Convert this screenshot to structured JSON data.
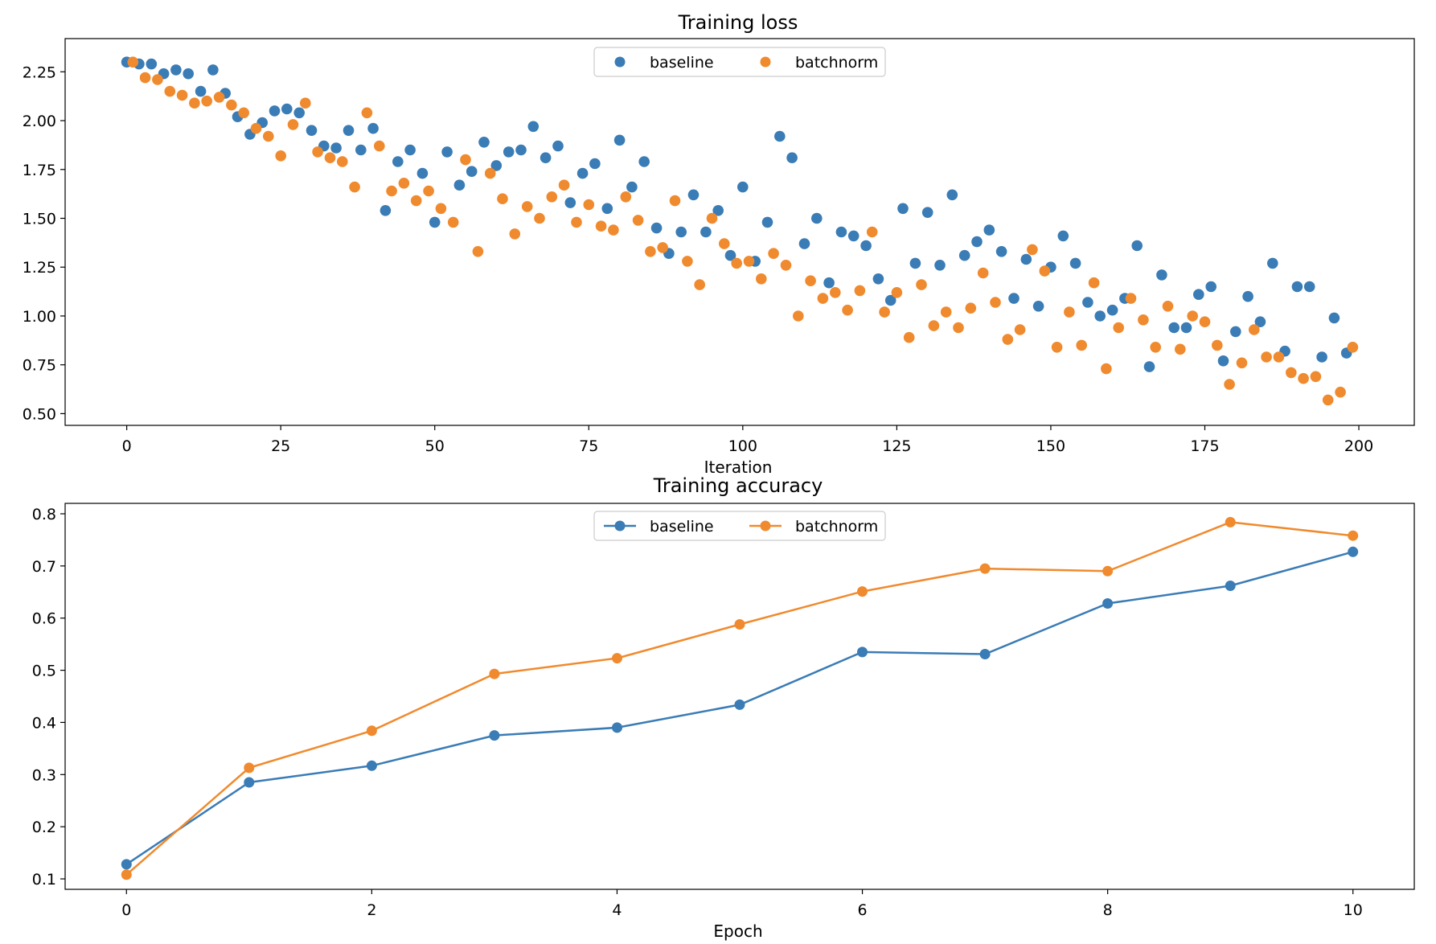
{
  "colors": {
    "baseline": "#3a7cb5",
    "batchnorm": "#f08a2e"
  },
  "chart_data": [
    {
      "type": "scatter",
      "title": "Training loss",
      "xlabel": "Iteration",
      "ylabel": "",
      "xlim": [
        -10,
        209
      ],
      "ylim": [
        0.44,
        2.42
      ],
      "xticks": [
        0,
        25,
        50,
        75,
        100,
        125,
        150,
        175,
        200
      ],
      "yticks": [
        0.5,
        0.75,
        1.0,
        1.25,
        1.5,
        1.75,
        2.0,
        2.25
      ],
      "ytick_labels": [
        "0.50",
        "0.75",
        "1.00",
        "1.25",
        "1.50",
        "1.75",
        "2.00",
        "2.25"
      ],
      "legend": "top-center",
      "grid": false,
      "series": [
        {
          "name": "baseline",
          "x": [
            0,
            2,
            4,
            6,
            8,
            10,
            12,
            14,
            16,
            18,
            20,
            22,
            24,
            26,
            28,
            30,
            32,
            34,
            36,
            38,
            40,
            42,
            44,
            46,
            48,
            50,
            52,
            54,
            56,
            58,
            60,
            62,
            64,
            66,
            68,
            70,
            72,
            74,
            76,
            78,
            80,
            82,
            84,
            86,
            88,
            90,
            92,
            94,
            96,
            98,
            100,
            102,
            104,
            106,
            108,
            110,
            112,
            114,
            116,
            118,
            120,
            122,
            124,
            126,
            128,
            130,
            132,
            134,
            136,
            138,
            140,
            142,
            144,
            146,
            148,
            150,
            152,
            154,
            156,
            158,
            160,
            162,
            164,
            166,
            168,
            170,
            172,
            174,
            176,
            178,
            180,
            182,
            184,
            186,
            188,
            190,
            192,
            194,
            196,
            198
          ],
          "values": [
            2.3,
            2.29,
            2.29,
            2.24,
            2.26,
            2.24,
            2.15,
            2.26,
            2.14,
            2.02,
            1.93,
            1.99,
            2.05,
            2.06,
            2.04,
            1.95,
            1.87,
            1.86,
            1.95,
            1.85,
            1.96,
            1.54,
            1.79,
            1.85,
            1.73,
            1.48,
            1.84,
            1.67,
            1.74,
            1.89,
            1.77,
            1.84,
            1.85,
            1.97,
            1.81,
            1.87,
            1.58,
            1.73,
            1.78,
            1.55,
            1.9,
            1.66,
            1.79,
            1.45,
            1.32,
            1.43,
            1.62,
            1.43,
            1.54,
            1.31,
            1.66,
            1.28,
            1.48,
            1.92,
            1.81,
            1.37,
            1.5,
            1.17,
            1.43,
            1.41,
            1.36,
            1.19,
            1.08,
            1.55,
            1.27,
            1.53,
            1.26,
            1.62,
            1.31,
            1.38,
            1.44,
            1.33,
            1.09,
            1.29,
            1.05,
            1.25,
            1.41,
            1.27,
            1.07,
            1.0,
            1.03,
            1.09,
            1.36,
            0.74,
            1.21,
            0.94,
            0.94,
            1.11,
            1.15,
            0.77,
            0.92,
            1.1,
            0.97,
            1.27,
            0.82,
            1.15,
            1.15,
            0.79,
            0.99,
            0.81
          ]
        },
        {
          "name": "batchnorm",
          "x": [
            1,
            3,
            5,
            7,
            9,
            11,
            13,
            15,
            17,
            19,
            21,
            23,
            25,
            27,
            29,
            31,
            33,
            35,
            37,
            39,
            41,
            43,
            45,
            47,
            49,
            51,
            53,
            55,
            57,
            59,
            61,
            63,
            65,
            67,
            69,
            71,
            73,
            75,
            77,
            79,
            81,
            83,
            85,
            87,
            89,
            91,
            93,
            95,
            97,
            99,
            101,
            103,
            105,
            107,
            109,
            111,
            113,
            115,
            117,
            119,
            121,
            123,
            125,
            127,
            129,
            131,
            133,
            135,
            137,
            139,
            141,
            143,
            145,
            147,
            149,
            151,
            153,
            155,
            157,
            159,
            161,
            163,
            165,
            167,
            169,
            171,
            173,
            175,
            177,
            179,
            181,
            183,
            185,
            187,
            189,
            191,
            193,
            195,
            197,
            199
          ],
          "values": [
            2.3,
            2.22,
            2.21,
            2.15,
            2.13,
            2.09,
            2.1,
            2.12,
            2.08,
            2.04,
            1.96,
            1.92,
            1.82,
            1.98,
            2.09,
            1.84,
            1.81,
            1.79,
            1.66,
            2.04,
            1.87,
            1.64,
            1.68,
            1.59,
            1.64,
            1.55,
            1.48,
            1.8,
            1.33,
            1.73,
            1.6,
            1.42,
            1.56,
            1.5,
            1.61,
            1.67,
            1.48,
            1.57,
            1.46,
            1.44,
            1.61,
            1.49,
            1.33,
            1.35,
            1.59,
            1.28,
            1.16,
            1.5,
            1.37,
            1.27,
            1.28,
            1.19,
            1.32,
            1.26,
            1.0,
            1.18,
            1.09,
            1.12,
            1.03,
            1.13,
            1.43,
            1.02,
            1.12,
            0.89,
            1.16,
            0.95,
            1.02,
            0.94,
            1.04,
            1.22,
            1.07,
            0.88,
            0.93,
            1.34,
            1.23,
            0.84,
            1.02,
            0.85,
            1.17,
            0.73,
            0.94,
            1.09,
            0.98,
            0.84,
            1.05,
            0.83,
            1.0,
            0.97,
            0.85,
            0.65,
            0.76,
            0.93,
            0.79,
            0.79,
            0.71,
            0.68,
            0.69,
            0.57,
            0.61,
            0.84
          ]
        }
      ]
    },
    {
      "type": "line",
      "title": "Training accuracy",
      "xlabel": "Epoch",
      "ylabel": "",
      "xlim": [
        -0.5,
        10.5
      ],
      "ylim": [
        0.08,
        0.82
      ],
      "xticks": [
        0,
        2,
        4,
        6,
        8,
        10
      ],
      "yticks": [
        0.1,
        0.2,
        0.3,
        0.4,
        0.5,
        0.6,
        0.7,
        0.8
      ],
      "ytick_labels": [
        "0.1",
        "0.2",
        "0.3",
        "0.4",
        "0.5",
        "0.6",
        "0.7",
        "0.8"
      ],
      "legend": "top-center",
      "grid": false,
      "x": [
        0,
        1,
        2,
        3,
        4,
        5,
        6,
        7,
        8,
        9,
        10
      ],
      "series": [
        {
          "name": "baseline",
          "values": [
            0.128,
            0.285,
            0.317,
            0.375,
            0.39,
            0.434,
            0.535,
            0.531,
            0.628,
            0.662,
            0.727
          ]
        },
        {
          "name": "batchnorm",
          "values": [
            0.108,
            0.313,
            0.384,
            0.493,
            0.523,
            0.588,
            0.651,
            0.695,
            0.69,
            0.784,
            0.758
          ]
        }
      ]
    }
  ]
}
